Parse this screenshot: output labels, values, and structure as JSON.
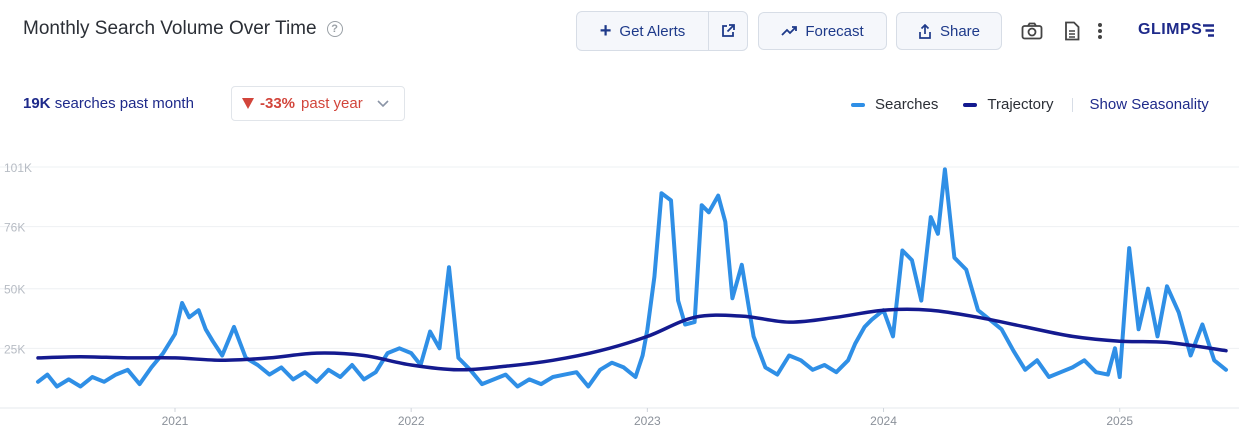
{
  "header": {
    "title": "Monthly Search Volume Over Time",
    "help_icon": "question-circle-icon",
    "get_alerts_label": "Get Alerts",
    "forecast_label": "Forecast",
    "share_label": "Share",
    "logo_text": "GLIMPS"
  },
  "summary": {
    "value": "19K",
    "text": "searches past month",
    "yoy_pct": "-33%",
    "yoy_suffix": "past year"
  },
  "legend": {
    "searches": "Searches",
    "trajectory": "Trajectory",
    "seasonality": "Show Seasonality"
  },
  "colors": {
    "searches": "#2f8fe6",
    "trajectory": "#141a8f",
    "accent": "#1e2a8a",
    "negative": "#d2453b"
  },
  "chart_data": {
    "type": "line",
    "ylim": [
      0,
      101000
    ],
    "xlim": [
      2020.42,
      2025.45
    ],
    "y_ticks": [
      {
        "value": 25000,
        "label": "25K"
      },
      {
        "value": 50000,
        "label": "50K"
      },
      {
        "value": 76000,
        "label": "76K"
      },
      {
        "value": 101000,
        "label": "101K"
      }
    ],
    "x_ticks": [
      {
        "value": 2021.0,
        "label": "2021"
      },
      {
        "value": 2022.0,
        "label": "2022"
      },
      {
        "value": 2023.0,
        "label": "2023"
      },
      {
        "value": 2024.0,
        "label": "2024"
      },
      {
        "value": 2025.0,
        "label": "2025"
      }
    ],
    "series": [
      {
        "name": "Searches",
        "x": [
          2020.42,
          2020.46,
          2020.5,
          2020.55,
          2020.6,
          2020.65,
          2020.7,
          2020.75,
          2020.8,
          2020.85,
          2020.9,
          2020.95,
          2021.0,
          2021.03,
          2021.06,
          2021.1,
          2021.13,
          2021.16,
          2021.2,
          2021.25,
          2021.3,
          2021.35,
          2021.4,
          2021.45,
          2021.5,
          2021.55,
          2021.6,
          2021.65,
          2021.7,
          2021.75,
          2021.8,
          2021.85,
          2021.9,
          2021.95,
          2022.0,
          2022.04,
          2022.08,
          2022.12,
          2022.16,
          2022.2,
          2022.25,
          2022.3,
          2022.35,
          2022.4,
          2022.45,
          2022.5,
          2022.55,
          2022.6,
          2022.65,
          2022.7,
          2022.75,
          2022.8,
          2022.85,
          2022.9,
          2022.95,
          2022.98,
          2023.0,
          2023.03,
          2023.06,
          2023.1,
          2023.13,
          2023.16,
          2023.2,
          2023.23,
          2023.26,
          2023.3,
          2023.33,
          2023.36,
          2023.4,
          2023.45,
          2023.5,
          2023.55,
          2023.6,
          2023.65,
          2023.7,
          2023.75,
          2023.8,
          2023.85,
          2023.88,
          2023.92,
          2023.95,
          2024.0,
          2024.04,
          2024.08,
          2024.12,
          2024.16,
          2024.2,
          2024.23,
          2024.26,
          2024.3,
          2024.35,
          2024.4,
          2024.45,
          2024.5,
          2024.55,
          2024.6,
          2024.65,
          2024.7,
          2024.75,
          2024.8,
          2024.85,
          2024.9,
          2024.95,
          2024.98,
          2025.0,
          2025.04,
          2025.08,
          2025.12,
          2025.16,
          2025.2,
          2025.25,
          2025.3,
          2025.35,
          2025.4,
          2025.45
        ],
        "values": [
          11000,
          14000,
          9000,
          12000,
          9000,
          13000,
          11000,
          14000,
          16000,
          10000,
          17000,
          23000,
          31000,
          44000,
          38000,
          41000,
          33000,
          28000,
          22000,
          34000,
          21000,
          18000,
          14000,
          17000,
          12000,
          15000,
          11000,
          16000,
          13000,
          18000,
          12000,
          15000,
          23000,
          25000,
          23000,
          18000,
          32000,
          25000,
          59000,
          21000,
          16000,
          10000,
          12000,
          14000,
          9000,
          12000,
          10000,
          13000,
          14000,
          15000,
          9000,
          16000,
          19000,
          17000,
          13000,
          22000,
          33000,
          55000,
          90000,
          87000,
          45000,
          35000,
          36000,
          85000,
          82000,
          89000,
          78000,
          46000,
          60000,
          30000,
          17000,
          14000,
          22000,
          20000,
          16000,
          18000,
          15000,
          20000,
          27000,
          34000,
          37000,
          41000,
          30000,
          66000,
          62000,
          45000,
          80000,
          73000,
          100000,
          63000,
          58000,
          41000,
          37000,
          33000,
          24000,
          16000,
          20000,
          13000,
          15000,
          17000,
          20000,
          15000,
          14000,
          25000,
          13000,
          67000,
          33000,
          50000,
          30000,
          51000,
          40000,
          22000,
          35000,
          20000,
          16000
        ]
      },
      {
        "name": "Trajectory",
        "x": [
          2020.42,
          2020.6,
          2020.8,
          2021.0,
          2021.2,
          2021.4,
          2021.6,
          2021.8,
          2022.0,
          2022.2,
          2022.4,
          2022.6,
          2022.8,
          2023.0,
          2023.2,
          2023.4,
          2023.6,
          2023.8,
          2024.0,
          2024.2,
          2024.4,
          2024.6,
          2024.8,
          2025.0,
          2025.2,
          2025.45
        ],
        "values": [
          21000,
          21500,
          21000,
          21000,
          20000,
          21000,
          23000,
          22000,
          18000,
          16000,
          17500,
          20000,
          24000,
          30000,
          38000,
          38500,
          36000,
          38000,
          41000,
          41000,
          38000,
          34000,
          30000,
          28000,
          27500,
          24000
        ]
      }
    ]
  }
}
